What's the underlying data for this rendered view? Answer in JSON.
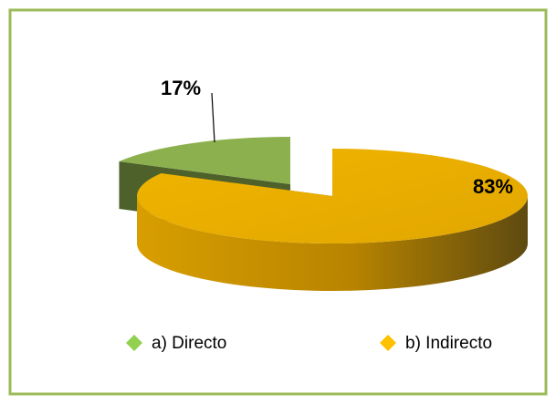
{
  "chart_data": {
    "type": "pie3d",
    "categories": [
      "a) Directo",
      "b) Indirecto"
    ],
    "values": [
      17,
      83
    ],
    "value_labels": [
      "17%",
      "83%"
    ],
    "colors": [
      "#8db04f",
      "#e9ad00"
    ]
  }
}
